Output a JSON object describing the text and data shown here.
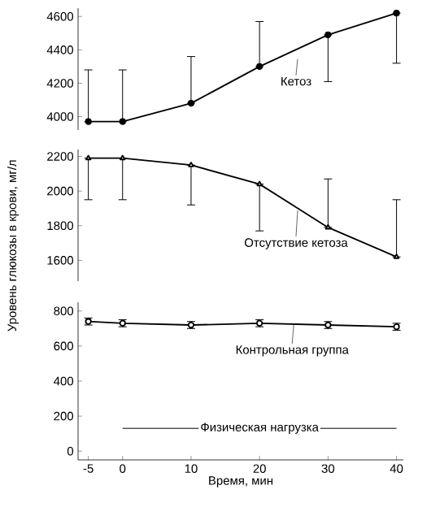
{
  "chart_data": [
    {
      "type": "line",
      "x": [
        -5,
        0,
        10,
        20,
        30,
        40
      ],
      "series": [
        {
          "color": "#000000",
          "values": [
            3970,
            3970,
            4080,
            4300,
            4490,
            4620
          ],
          "errors": [
            [
              3970,
              4280
            ],
            [
              3970,
              4280
            ],
            [
              4080,
              4360
            ],
            [
              4300,
              4570
            ],
            [
              4210,
              4490
            ],
            [
              4320,
              4620
            ]
          ]
        }
      ],
      "ylim": [
        3920,
        4650
      ],
      "yticks": [
        4000,
        4200,
        4400,
        4600
      ],
      "tick_labels": "y",
      "marker": "circle",
      "annotations": [
        "Кетоз"
      ]
    },
    {
      "type": "line",
      "x": [
        -5,
        0,
        10,
        20,
        30,
        40
      ],
      "series": [
        {
          "color": "#000000",
          "values": [
            2190,
            2190,
            2150,
            2040,
            1790,
            1620
          ],
          "errors": [
            [
              1950,
              2190
            ],
            [
              1950,
              2190
            ],
            [
              1920,
              2150
            ],
            [
              1770,
              2040
            ],
            [
              1790,
              2070
            ],
            [
              1620,
              1950
            ]
          ]
        }
      ],
      "ylim": [
        1480,
        2240
      ],
      "yticks": [
        1600,
        1800,
        2000,
        2200
      ],
      "tick_labels": "y",
      "marker": "triangle",
      "ylabel": "Уровень глюкозы в крови, мг/л",
      "annotations": [
        "Отсутствие кетоза"
      ]
    },
    {
      "type": "line",
      "x": [
        -5,
        0,
        10,
        20,
        30,
        40
      ],
      "series": [
        {
          "color": "#000000",
          "values": [
            740,
            730,
            720,
            730,
            720,
            710
          ],
          "errors": [
            20,
            20,
            20,
            20,
            20,
            20
          ]
        },
        {
          "name": "Физическая нагрузка",
          "color": "#000000",
          "x": [
            0,
            40
          ],
          "values": [
            130,
            130
          ],
          "marker": "none"
        }
      ],
      "xlim": [
        -6.5,
        41
      ],
      "ylim": [
        -50,
        850
      ],
      "xticks": [
        -5,
        0,
        10,
        20,
        30,
        40
      ],
      "yticks": [
        0,
        200,
        400,
        600,
        800
      ],
      "marker": "circle",
      "xlabel": "Время, мин",
      "annotations": [
        {
          "text": "Контрольная группа",
          "x": 25,
          "y": 725
        }
      ]
    }
  ]
}
